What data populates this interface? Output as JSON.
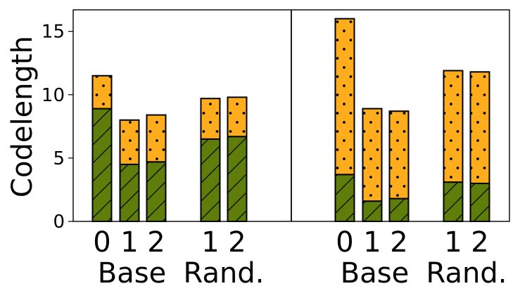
{
  "chart_data": {
    "type": "bar",
    "stacked": true,
    "ylabel": "Codelength",
    "ylim": [
      0,
      16.7
    ],
    "yticks": [
      0,
      5,
      10,
      15
    ],
    "grid": false,
    "legend": "none",
    "colors": {
      "bottom": "#5e7d0b",
      "top": "#ffad1c",
      "edge": "#000000"
    },
    "series": [
      {
        "pattern": "hatch-diagonal",
        "color": "#5e7d0b"
      },
      {
        "pattern": "dots",
        "color": "#ffad1c"
      }
    ],
    "panels": [
      {
        "bars": [
          {
            "tick": "0",
            "bottom": 8.9,
            "total": 11.5
          },
          {
            "tick": "1",
            "bottom": 4.5,
            "total": 8.0
          },
          {
            "tick": "2",
            "bottom": 4.7,
            "total": 8.4
          },
          {
            "tick": "1",
            "bottom": 6.5,
            "total": 9.7
          },
          {
            "tick": "2",
            "bottom": 6.7,
            "total": 9.8
          }
        ],
        "groups": [
          "Base",
          "Rand."
        ]
      },
      {
        "bars": [
          {
            "tick": "0",
            "bottom": 3.7,
            "total": 16.0
          },
          {
            "tick": "1",
            "bottom": 1.6,
            "total": 8.9
          },
          {
            "tick": "2",
            "bottom": 1.8,
            "total": 8.7
          },
          {
            "tick": "1",
            "bottom": 3.1,
            "total": 11.9
          },
          {
            "tick": "2",
            "bottom": 3.0,
            "total": 11.8
          }
        ],
        "groups": [
          "Base",
          "Rand."
        ]
      }
    ]
  }
}
